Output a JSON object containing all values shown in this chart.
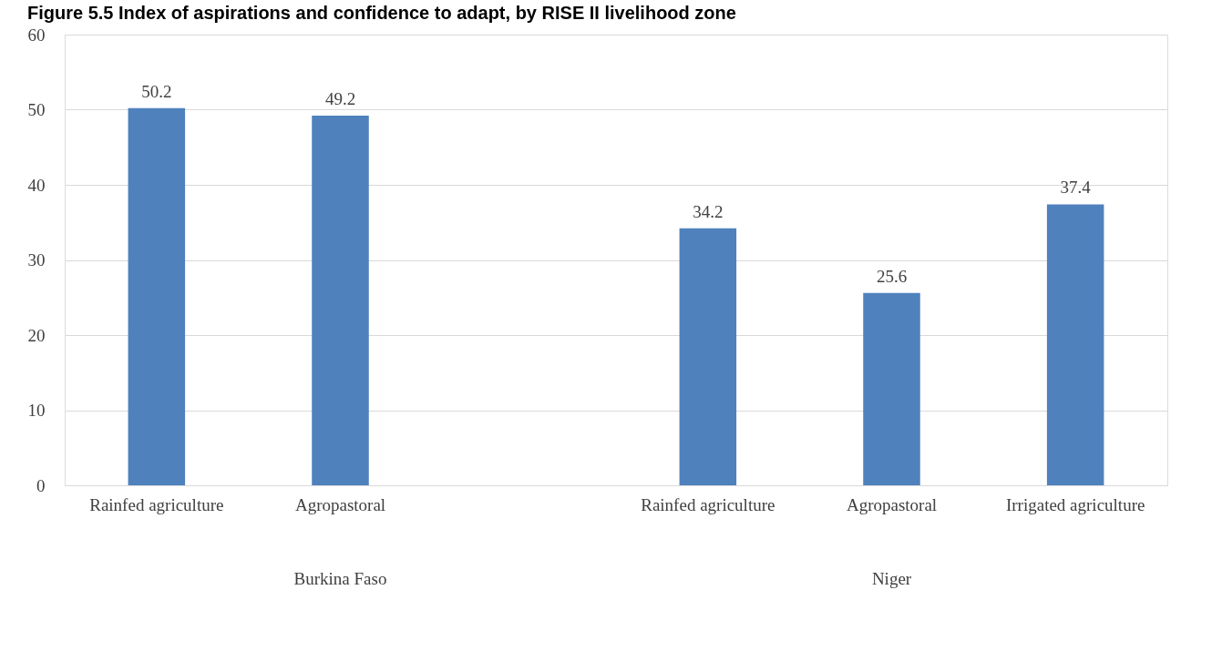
{
  "chart_data": {
    "type": "bar",
    "title": "Figure 5.5 Index of aspirations and confidence to adapt, by RISE II livelihood zone",
    "categories": [
      "Rainfed agriculture",
      "Agropastoral",
      null,
      "Rainfed agriculture",
      "Agropastoral",
      "Irrigated agriculture"
    ],
    "values": [
      50.2,
      49.2,
      null,
      34.2,
      25.6,
      37.4
    ],
    "color": "#4f81bd",
    "ylim": [
      0,
      60
    ],
    "yticks": [
      0,
      10,
      20,
      30,
      40,
      50,
      60
    ],
    "grid": "y",
    "data_labels": true,
    "annotations": [
      "Burkina Faso",
      "Niger"
    ]
  }
}
